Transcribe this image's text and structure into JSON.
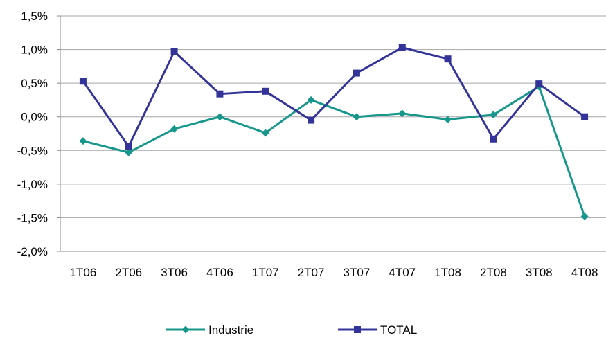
{
  "chart_data": {
    "type": "line",
    "title": "",
    "xlabel": "",
    "ylabel": "",
    "categories": [
      "1T06",
      "2T06",
      "3T06",
      "4T06",
      "1T07",
      "2T07",
      "3T07",
      "4T07",
      "1T08",
      "2T08",
      "3T08",
      "4T08"
    ],
    "ylim": [
      -2.0,
      1.5
    ],
    "yticks": [
      1.5,
      1.0,
      0.5,
      0.0,
      -0.5,
      -1.0,
      -1.5,
      -2.0
    ],
    "ytick_labels": [
      "1,5%",
      "1,0%",
      "0,5%",
      "0,0%",
      "-0,5%",
      "-1,0%",
      "-1,5%",
      "-2,0%"
    ],
    "grid": true,
    "legend_position": "bottom",
    "series": [
      {
        "name": "Industrie",
        "color": "#17978c",
        "marker": "diamond",
        "values": [
          -0.36,
          -0.53,
          -0.18,
          0.0,
          -0.24,
          0.25,
          0.0,
          0.05,
          -0.04,
          0.03,
          0.45,
          -1.48
        ]
      },
      {
        "name": "TOTAL",
        "color": "#333399",
        "marker": "square",
        "values": [
          0.53,
          -0.44,
          0.97,
          0.34,
          0.38,
          -0.05,
          0.65,
          1.03,
          0.86,
          -0.33,
          0.49,
          0.0
        ]
      }
    ]
  }
}
